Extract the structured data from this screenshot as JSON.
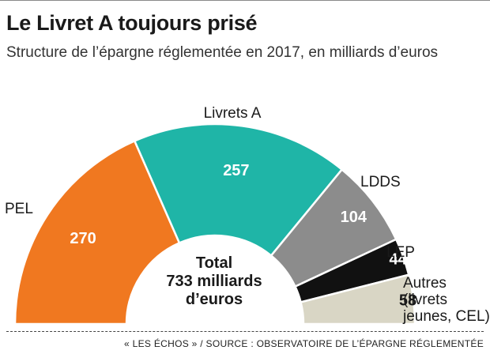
{
  "title": "Le Livret A toujours prisé",
  "subtitle": "Structure de l’épargne réglementée en 2017, en milliards d’euros",
  "center_label": {
    "line1": "Total",
    "line2": "733 milliards",
    "line3": "d’euros"
  },
  "source": "« LES ÉCHOS » / SOURCE : OBSERVATOIRE DE L’ÉPARGNE RÉGLEMENTÉE",
  "chart_data": {
    "type": "pie",
    "variant": "semicircle-donut",
    "title": "Le Livret A toujours prisé",
    "subtitle": "Structure de l’épargne réglementée en 2017, en milliards d’euros",
    "total": 733,
    "slices": [
      {
        "label": "PEL",
        "value": 270,
        "color": "#f07820",
        "value_color": "#ffffff"
      },
      {
        "label": "Livrets A",
        "value": 257,
        "color": "#1fb5a7",
        "value_color": "#ffffff"
      },
      {
        "label": "LDDS",
        "value": 104,
        "color": "#8c8c8c",
        "value_color": "#ffffff"
      },
      {
        "label": "LEP",
        "value": 44,
        "color": "#111111",
        "value_color": "#ffffff"
      },
      {
        "label": "Autres (livrets jeunes, CEL)",
        "label_lines": [
          "Autres",
          "(livrets",
          "jeunes, CEL)"
        ],
        "value": 58,
        "color": "#d9d6c5",
        "value_color": "#1a1a1a"
      }
    ]
  }
}
